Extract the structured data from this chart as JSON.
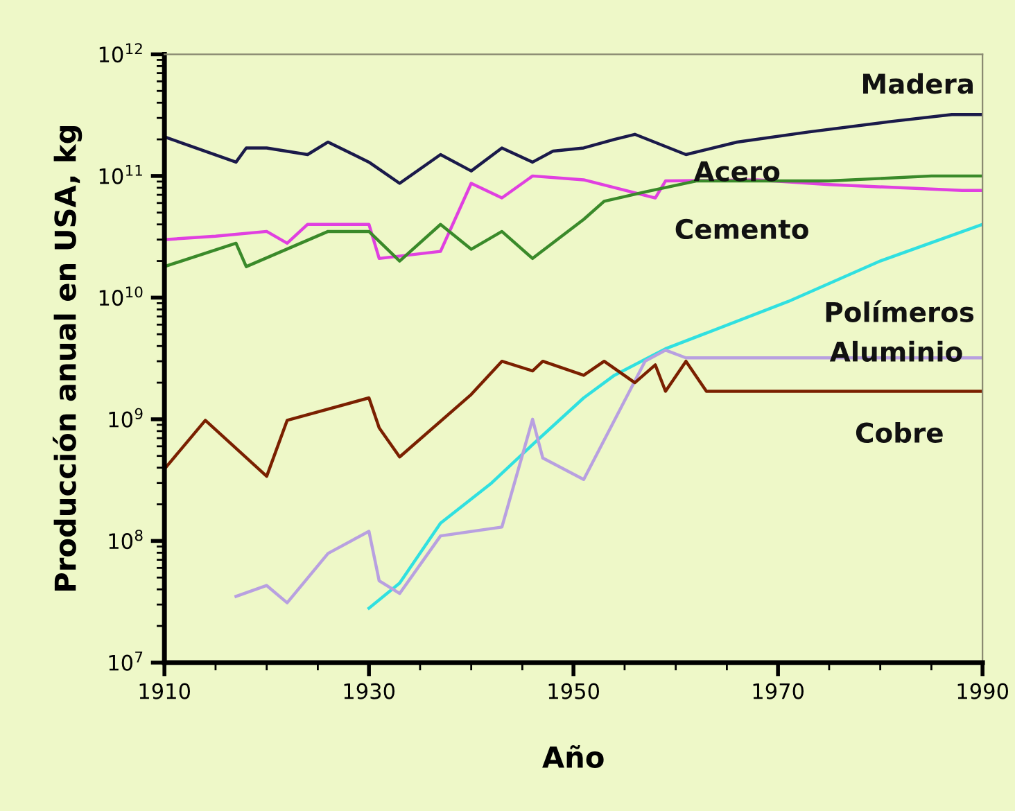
{
  "chart_data": {
    "type": "line",
    "xlabel": "Año",
    "ylabel": "Producción anual en USA, kg",
    "log": "y",
    "grid": false,
    "legend": false,
    "xlim": [
      1910,
      1990
    ],
    "xticks": [
      1910,
      1930,
      1950,
      1970,
      1990
    ],
    "ylim": [
      10000000.0,
      1000000000000.0
    ],
    "yticks": [
      {
        "value": 10000000.0,
        "label": "10$^{7}$"
      },
      {
        "value": 100000000.0,
        "label": "10$^{8}$"
      },
      {
        "value": 1000000000.0,
        "label": "10$^{9}$"
      },
      {
        "value": 10000000000.0,
        "label": "10$^{10}$"
      },
      {
        "value": 100000000000.0,
        "label": "10$^{11}$"
      },
      {
        "value": 1000000000000.0,
        "label": "10$^{12}$"
      }
    ],
    "series": [
      {
        "name": "Madera",
        "color": "#1a1a4a",
        "x": [
          1910,
          1917,
          1918,
          1920,
          1924,
          1926,
          1930,
          1933,
          1937,
          1940,
          1943,
          1946,
          1948,
          1951,
          1954,
          1956,
          1961,
          1966,
          1973,
          1981,
          1987,
          1990
        ],
        "values": [
          210000000000.0,
          130000000000.0,
          170000000000.0,
          170000000000.0,
          150000000000.0,
          190000000000.0,
          130000000000.0,
          87000000000.0,
          150000000000.0,
          110000000000.0,
          170000000000.0,
          130000000000.0,
          160000000000.0,
          170000000000.0,
          200000000000.0,
          220000000000.0,
          150000000000.0,
          190000000000.0,
          230000000000.0,
          280000000000.0,
          320000000000.0,
          320000000000.0
        ]
      },
      {
        "name": "Acero",
        "color": "#e040e0",
        "x": [
          1910,
          1915,
          1920,
          1922,
          1924,
          1930,
          1931,
          1937,
          1940,
          1943,
          1946,
          1951,
          1958,
          1959,
          1968,
          1975,
          1988,
          1990
        ],
        "values": [
          30000000000.0,
          32000000000.0,
          35000000000.0,
          28000000000.0,
          40000000000.0,
          40000000000.0,
          21000000000.0,
          24000000000.0,
          87000000000.0,
          66000000000.0,
          100000000000.0,
          93000000000.0,
          66000000000.0,
          91000000000.0,
          93000000000.0,
          85000000000.0,
          76000000000.0,
          76000000000.0
        ]
      },
      {
        "name": "Cemento",
        "color": "#3a8a2a",
        "x": [
          1910,
          1917,
          1918,
          1926,
          1930,
          1933,
          1937,
          1940,
          1943,
          1946,
          1951,
          1953,
          1957,
          1962,
          1975,
          1985,
          1990
        ],
        "values": [
          18000000000.0,
          28000000000.0,
          18000000000.0,
          35000000000.0,
          35000000000.0,
          20000000000.0,
          40000000000.0,
          25000000000.0,
          35000000000.0,
          21000000000.0,
          44000000000.0,
          62000000000.0,
          74000000000.0,
          91000000000.0,
          91000000000.0,
          100000000000.0,
          100000000000.0
        ]
      },
      {
        "name": "Polímeros",
        "color": "#30e0e0",
        "x": [
          1930,
          1933,
          1937,
          1942,
          1946,
          1951,
          1954,
          1959,
          1971,
          1980,
          1990
        ],
        "values": [
          28000000.0,
          45000000.0,
          140000000.0,
          300000000.0,
          620000000.0,
          1500000000.0,
          2300000000.0,
          3800000000.0,
          9300000000.0,
          20000000000.0,
          40000000000.0
        ]
      },
      {
        "name": "Aluminio",
        "color": "#b8a0e0",
        "x": [
          1917,
          1920,
          1922,
          1926,
          1930,
          1931,
          1933,
          1937,
          1943,
          1946,
          1947,
          1951,
          1957,
          1959,
          1961,
          1990
        ],
        "values": [
          35000000.0,
          43000000.0,
          31000000.0,
          79000000.0,
          120000000.0,
          47000000.0,
          37000000.0,
          110000000.0,
          130000000.0,
          1000000000.0,
          480000000.0,
          320000000.0,
          3000000000.0,
          3700000000.0,
          3200000000.0,
          3200000000.0
        ]
      },
      {
        "name": "Cobre",
        "color": "#7a2000",
        "x": [
          1910,
          1914,
          1920,
          1922,
          1930,
          1931,
          1933,
          1940,
          1943,
          1946,
          1947,
          1951,
          1953,
          1956,
          1958,
          1959,
          1961,
          1963,
          1990
        ],
        "values": [
          390000000.0,
          980000000.0,
          340000000.0,
          980000000.0,
          1500000000.0,
          850000000.0,
          490000000.0,
          1600000000.0,
          3000000000.0,
          2500000000.0,
          3000000000.0,
          2300000000.0,
          3000000000.0,
          2000000000.0,
          2800000000.0,
          1700000000.0,
          3000000000.0,
          1700000000.0,
          1700000000.0
        ]
      }
    ]
  }
}
